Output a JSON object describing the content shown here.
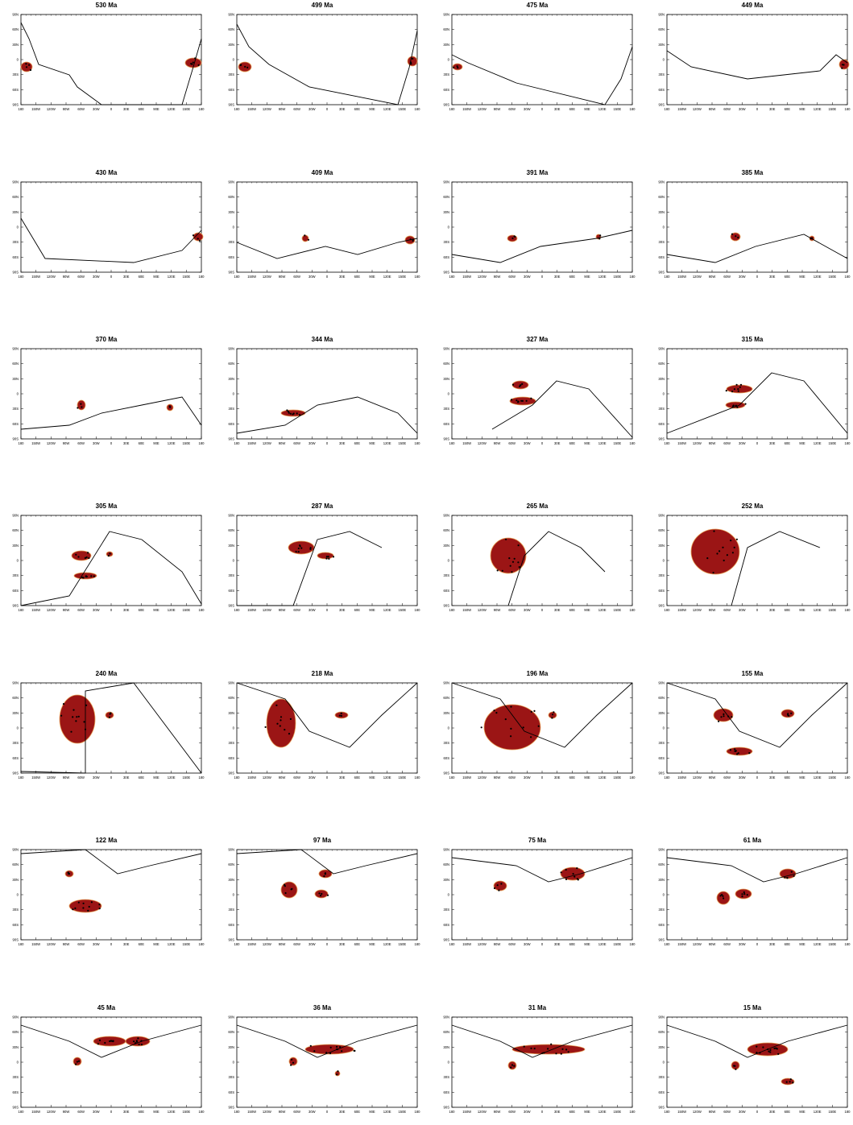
{
  "axes": {
    "lon_labels": [
      "180",
      "150W",
      "120W",
      "90W",
      "60W",
      "30W",
      "0",
      "30E",
      "60E",
      "90E",
      "120E",
      "150E",
      "180"
    ],
    "lat_labels": [
      "90N",
      "60N",
      "30N",
      "0",
      "30S",
      "60S",
      "90S"
    ]
  },
  "colors": {
    "coastline": "#000000",
    "region_fill": "#9b1515",
    "region_edge": "#e8a35a",
    "points": "#000000"
  },
  "panels": [
    {
      "title": "530 Ma"
    },
    {
      "title": "499 Ma"
    },
    {
      "title": "475 Ma"
    },
    {
      "title": "449 Ma"
    },
    {
      "title": "430 Ma"
    },
    {
      "title": "409 Ma"
    },
    {
      "title": "391 Ma"
    },
    {
      "title": "385 Ma"
    },
    {
      "title": "370 Ma"
    },
    {
      "title": "344 Ma"
    },
    {
      "title": "327 Ma"
    },
    {
      "title": "315 Ma"
    },
    {
      "title": "305 Ma"
    },
    {
      "title": "287 Ma"
    },
    {
      "title": "265 Ma"
    },
    {
      "title": "252 Ma"
    },
    {
      "title": "240 Ma"
    },
    {
      "title": "218 Ma"
    },
    {
      "title": "196 Ma"
    },
    {
      "title": "155 Ma"
    },
    {
      "title": "122 Ma"
    },
    {
      "title": "97 Ma"
    },
    {
      "title": "75 Ma"
    },
    {
      "title": "61 Ma"
    },
    {
      "title": "45 Ma"
    },
    {
      "title": "36 Ma"
    },
    {
      "title": "31 Ma"
    },
    {
      "title": "15 Ma"
    }
  ]
}
